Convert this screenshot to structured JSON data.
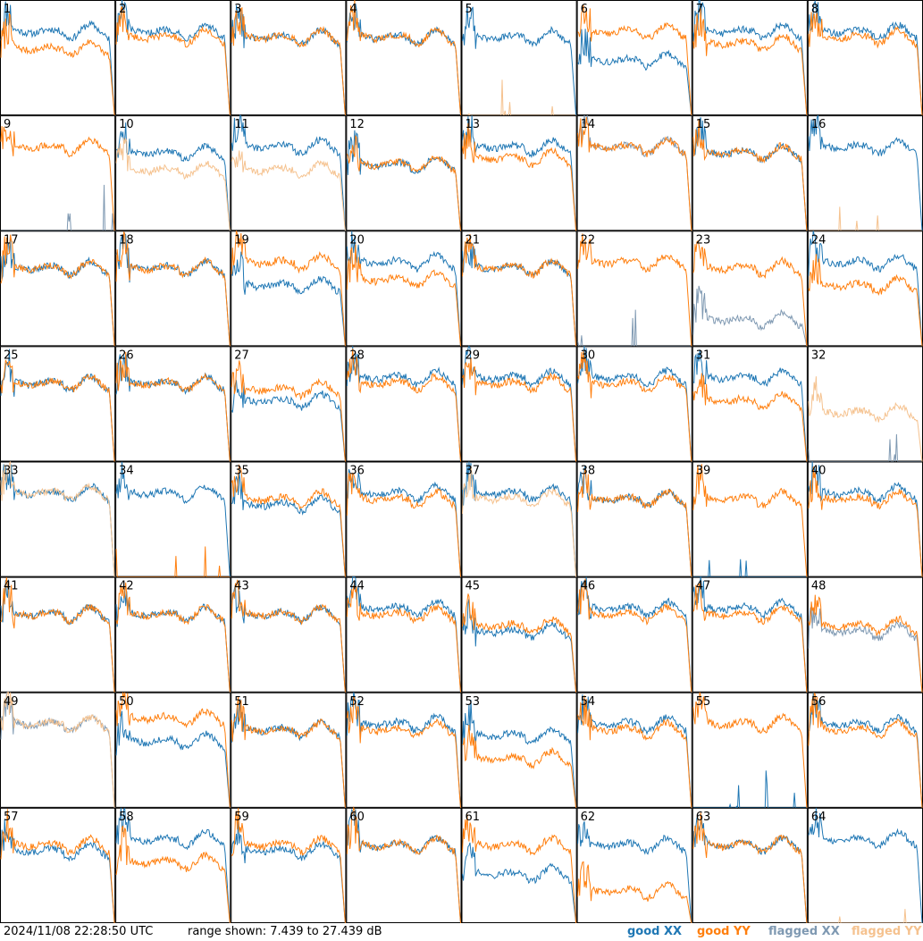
{
  "footer": {
    "timestamp": "2024/11/08 22:28:50 UTC",
    "range": "range shown: 7.439 to 27.439 dB"
  },
  "legend": [
    {
      "label": "good XX",
      "color": "#1f77b4"
    },
    {
      "label": "good YY",
      "color": "#ff7f0e"
    },
    {
      "label": "flagged XX",
      "color": "#7f99b2"
    },
    {
      "label": "flagged YY",
      "color": "#f5c28f"
    }
  ],
  "chart_data": {
    "type": "line",
    "grid_rows": 8,
    "grid_cols": 8,
    "ylim": [
      7.439,
      27.439
    ],
    "panels": [
      {
        "label": "1",
        "xx": "good",
        "yy": "good",
        "xx_level": 22,
        "yy_level": 19
      },
      {
        "label": "2",
        "xx": "good",
        "yy": "good",
        "xx_level": 22,
        "yy_level": 21
      },
      {
        "label": "3",
        "xx": "good",
        "yy": "good",
        "xx_level": 21,
        "yy_level": 21
      },
      {
        "label": "4",
        "xx": "good",
        "yy": "good",
        "xx_level": 21,
        "yy_level": 21
      },
      {
        "label": "5",
        "xx": "good",
        "yy": "flagged",
        "xx_level": 21,
        "yy_level": 8
      },
      {
        "label": "6",
        "xx": "good",
        "yy": "good",
        "xx_level": 17,
        "yy_level": 22
      },
      {
        "label": "7",
        "xx": "good",
        "yy": "good",
        "xx_level": 22,
        "yy_level": 20
      },
      {
        "label": "8",
        "xx": "good",
        "yy": "good",
        "xx_level": 22,
        "yy_level": 21
      },
      {
        "label": "9",
        "xx": "flagged",
        "yy": "good",
        "xx_level": 8,
        "yy_level": 22
      },
      {
        "label": "10",
        "xx": "good",
        "yy": "flagged",
        "xx_level": 21,
        "yy_level": 18
      },
      {
        "label": "11",
        "xx": "good",
        "yy": "flagged",
        "xx_level": 22,
        "yy_level": 18
      },
      {
        "label": "12",
        "xx": "good",
        "yy": "good",
        "xx_level": 19,
        "yy_level": 19
      },
      {
        "label": "13",
        "xx": "good",
        "yy": "good",
        "xx_level": 22,
        "yy_level": 20
      },
      {
        "label": "14",
        "xx": "flagged",
        "yy": "good",
        "xx_level": 22,
        "yy_level": 22
      },
      {
        "label": "15",
        "xx": "good",
        "yy": "good",
        "xx_level": 21,
        "yy_level": 21
      },
      {
        "label": "16",
        "xx": "good",
        "yy": "flagged",
        "xx_level": 22,
        "yy_level": 8
      },
      {
        "label": "17",
        "xx": "good",
        "yy": "good",
        "xx_level": 21,
        "yy_level": 21
      },
      {
        "label": "18",
        "xx": "good",
        "yy": "good",
        "xx_level": 21,
        "yy_level": 21
      },
      {
        "label": "19",
        "xx": "good",
        "yy": "good",
        "xx_level": 18,
        "yy_level": 22
      },
      {
        "label": "20",
        "xx": "good",
        "yy": "good",
        "xx_level": 22,
        "yy_level": 19
      },
      {
        "label": "21",
        "xx": "good",
        "yy": "good",
        "xx_level": 21,
        "yy_level": 21
      },
      {
        "label": "22",
        "xx": "flagged",
        "yy": "good",
        "xx_level": 8,
        "yy_level": 22
      },
      {
        "label": "23",
        "xx": "flagged",
        "yy": "good",
        "xx_level": 12,
        "yy_level": 21
      },
      {
        "label": "24",
        "xx": "good",
        "yy": "good",
        "xx_level": 22,
        "yy_level": 18
      },
      {
        "label": "25",
        "xx": "good",
        "yy": "good",
        "xx_level": 21,
        "yy_level": 21
      },
      {
        "label": "26",
        "xx": "good",
        "yy": "good",
        "xx_level": 21,
        "yy_level": 21
      },
      {
        "label": "27",
        "xx": "good",
        "yy": "good",
        "xx_level": 18,
        "yy_level": 20
      },
      {
        "label": "28",
        "xx": "good",
        "yy": "good",
        "xx_level": 22,
        "yy_level": 21
      },
      {
        "label": "29",
        "xx": "good",
        "yy": "good",
        "xx_level": 22,
        "yy_level": 21
      },
      {
        "label": "30",
        "xx": "good",
        "yy": "good",
        "xx_level": 22,
        "yy_level": 21
      },
      {
        "label": "31",
        "xx": "good",
        "yy": "good",
        "xx_level": 22,
        "yy_level": 18
      },
      {
        "label": "32",
        "xx": "flagged",
        "yy": "flagged",
        "xx_level": 8,
        "yy_level": 16
      },
      {
        "label": "33",
        "xx": "good",
        "yy": "flagged",
        "xx_level": 22,
        "yy_level": 22
      },
      {
        "label": "34",
        "xx": "good",
        "yy": "good",
        "xx_level": 22,
        "yy_level": 8
      },
      {
        "label": "35",
        "xx": "good",
        "yy": "good",
        "xx_level": 20,
        "yy_level": 21
      },
      {
        "label": "36",
        "xx": "good",
        "yy": "good",
        "xx_level": 22,
        "yy_level": 21
      },
      {
        "label": "37",
        "xx": "good",
        "yy": "flagged",
        "xx_level": 22,
        "yy_level": 21
      },
      {
        "label": "38",
        "xx": "good",
        "yy": "good",
        "xx_level": 21,
        "yy_level": 21
      },
      {
        "label": "39",
        "xx": "good",
        "yy": "good",
        "xx_level": 8,
        "yy_level": 21
      },
      {
        "label": "40",
        "xx": "good",
        "yy": "good",
        "xx_level": 22,
        "yy_level": 21
      },
      {
        "label": "41",
        "xx": "good",
        "yy": "good",
        "xx_level": 21,
        "yy_level": 21
      },
      {
        "label": "42",
        "xx": "good",
        "yy": "good",
        "xx_level": 21,
        "yy_level": 21
      },
      {
        "label": "43",
        "xx": "good",
        "yy": "good",
        "xx_level": 21,
        "yy_level": 21
      },
      {
        "label": "44",
        "xx": "good",
        "yy": "good",
        "xx_level": 22,
        "yy_level": 21
      },
      {
        "label": "45",
        "xx": "good",
        "yy": "good",
        "xx_level": 18,
        "yy_level": 19
      },
      {
        "label": "46",
        "xx": "good",
        "yy": "good",
        "xx_level": 22,
        "yy_level": 21
      },
      {
        "label": "47",
        "xx": "good",
        "yy": "good",
        "xx_level": 22,
        "yy_level": 21
      },
      {
        "label": "48",
        "xx": "flagged",
        "yy": "good",
        "xx_level": 18,
        "yy_level": 19
      },
      {
        "label": "49",
        "xx": "flagged",
        "yy": "flagged",
        "xx_level": 22,
        "yy_level": 22
      },
      {
        "label": "50",
        "xx": "good",
        "yy": "good",
        "xx_level": 19,
        "yy_level": 23
      },
      {
        "label": "51",
        "xx": "good",
        "yy": "good",
        "xx_level": 21,
        "yy_level": 21
      },
      {
        "label": "52",
        "xx": "good",
        "yy": "good",
        "xx_level": 22,
        "yy_level": 21
      },
      {
        "label": "53",
        "xx": "good",
        "yy": "good",
        "xx_level": 20,
        "yy_level": 16
      },
      {
        "label": "54",
        "xx": "good",
        "yy": "good",
        "xx_level": 22,
        "yy_level": 21
      },
      {
        "label": "55",
        "xx": "good",
        "yy": "good",
        "xx_level": 8,
        "yy_level": 22
      },
      {
        "label": "56",
        "xx": "good",
        "yy": "good",
        "xx_level": 22,
        "yy_level": 21
      },
      {
        "label": "57",
        "xx": "good",
        "yy": "good",
        "xx_level": 20,
        "yy_level": 21
      },
      {
        "label": "58",
        "xx": "good",
        "yy": "good",
        "xx_level": 22,
        "yy_level": 18
      },
      {
        "label": "59",
        "xx": "good",
        "yy": "good",
        "xx_level": 20,
        "yy_level": 21
      },
      {
        "label": "60",
        "xx": "good",
        "yy": "good",
        "xx_level": 21,
        "yy_level": 21
      },
      {
        "label": "61",
        "xx": "good",
        "yy": "good",
        "xx_level": 16,
        "yy_level": 21
      },
      {
        "label": "62",
        "xx": "good",
        "yy": "good",
        "xx_level": 21,
        "yy_level": 13
      },
      {
        "label": "63",
        "xx": "good",
        "yy": "good",
        "xx_level": 21,
        "yy_level": 21
      },
      {
        "label": "64",
        "xx": "good",
        "yy": "flagged",
        "xx_level": 22,
        "yy_level": 8
      }
    ]
  }
}
